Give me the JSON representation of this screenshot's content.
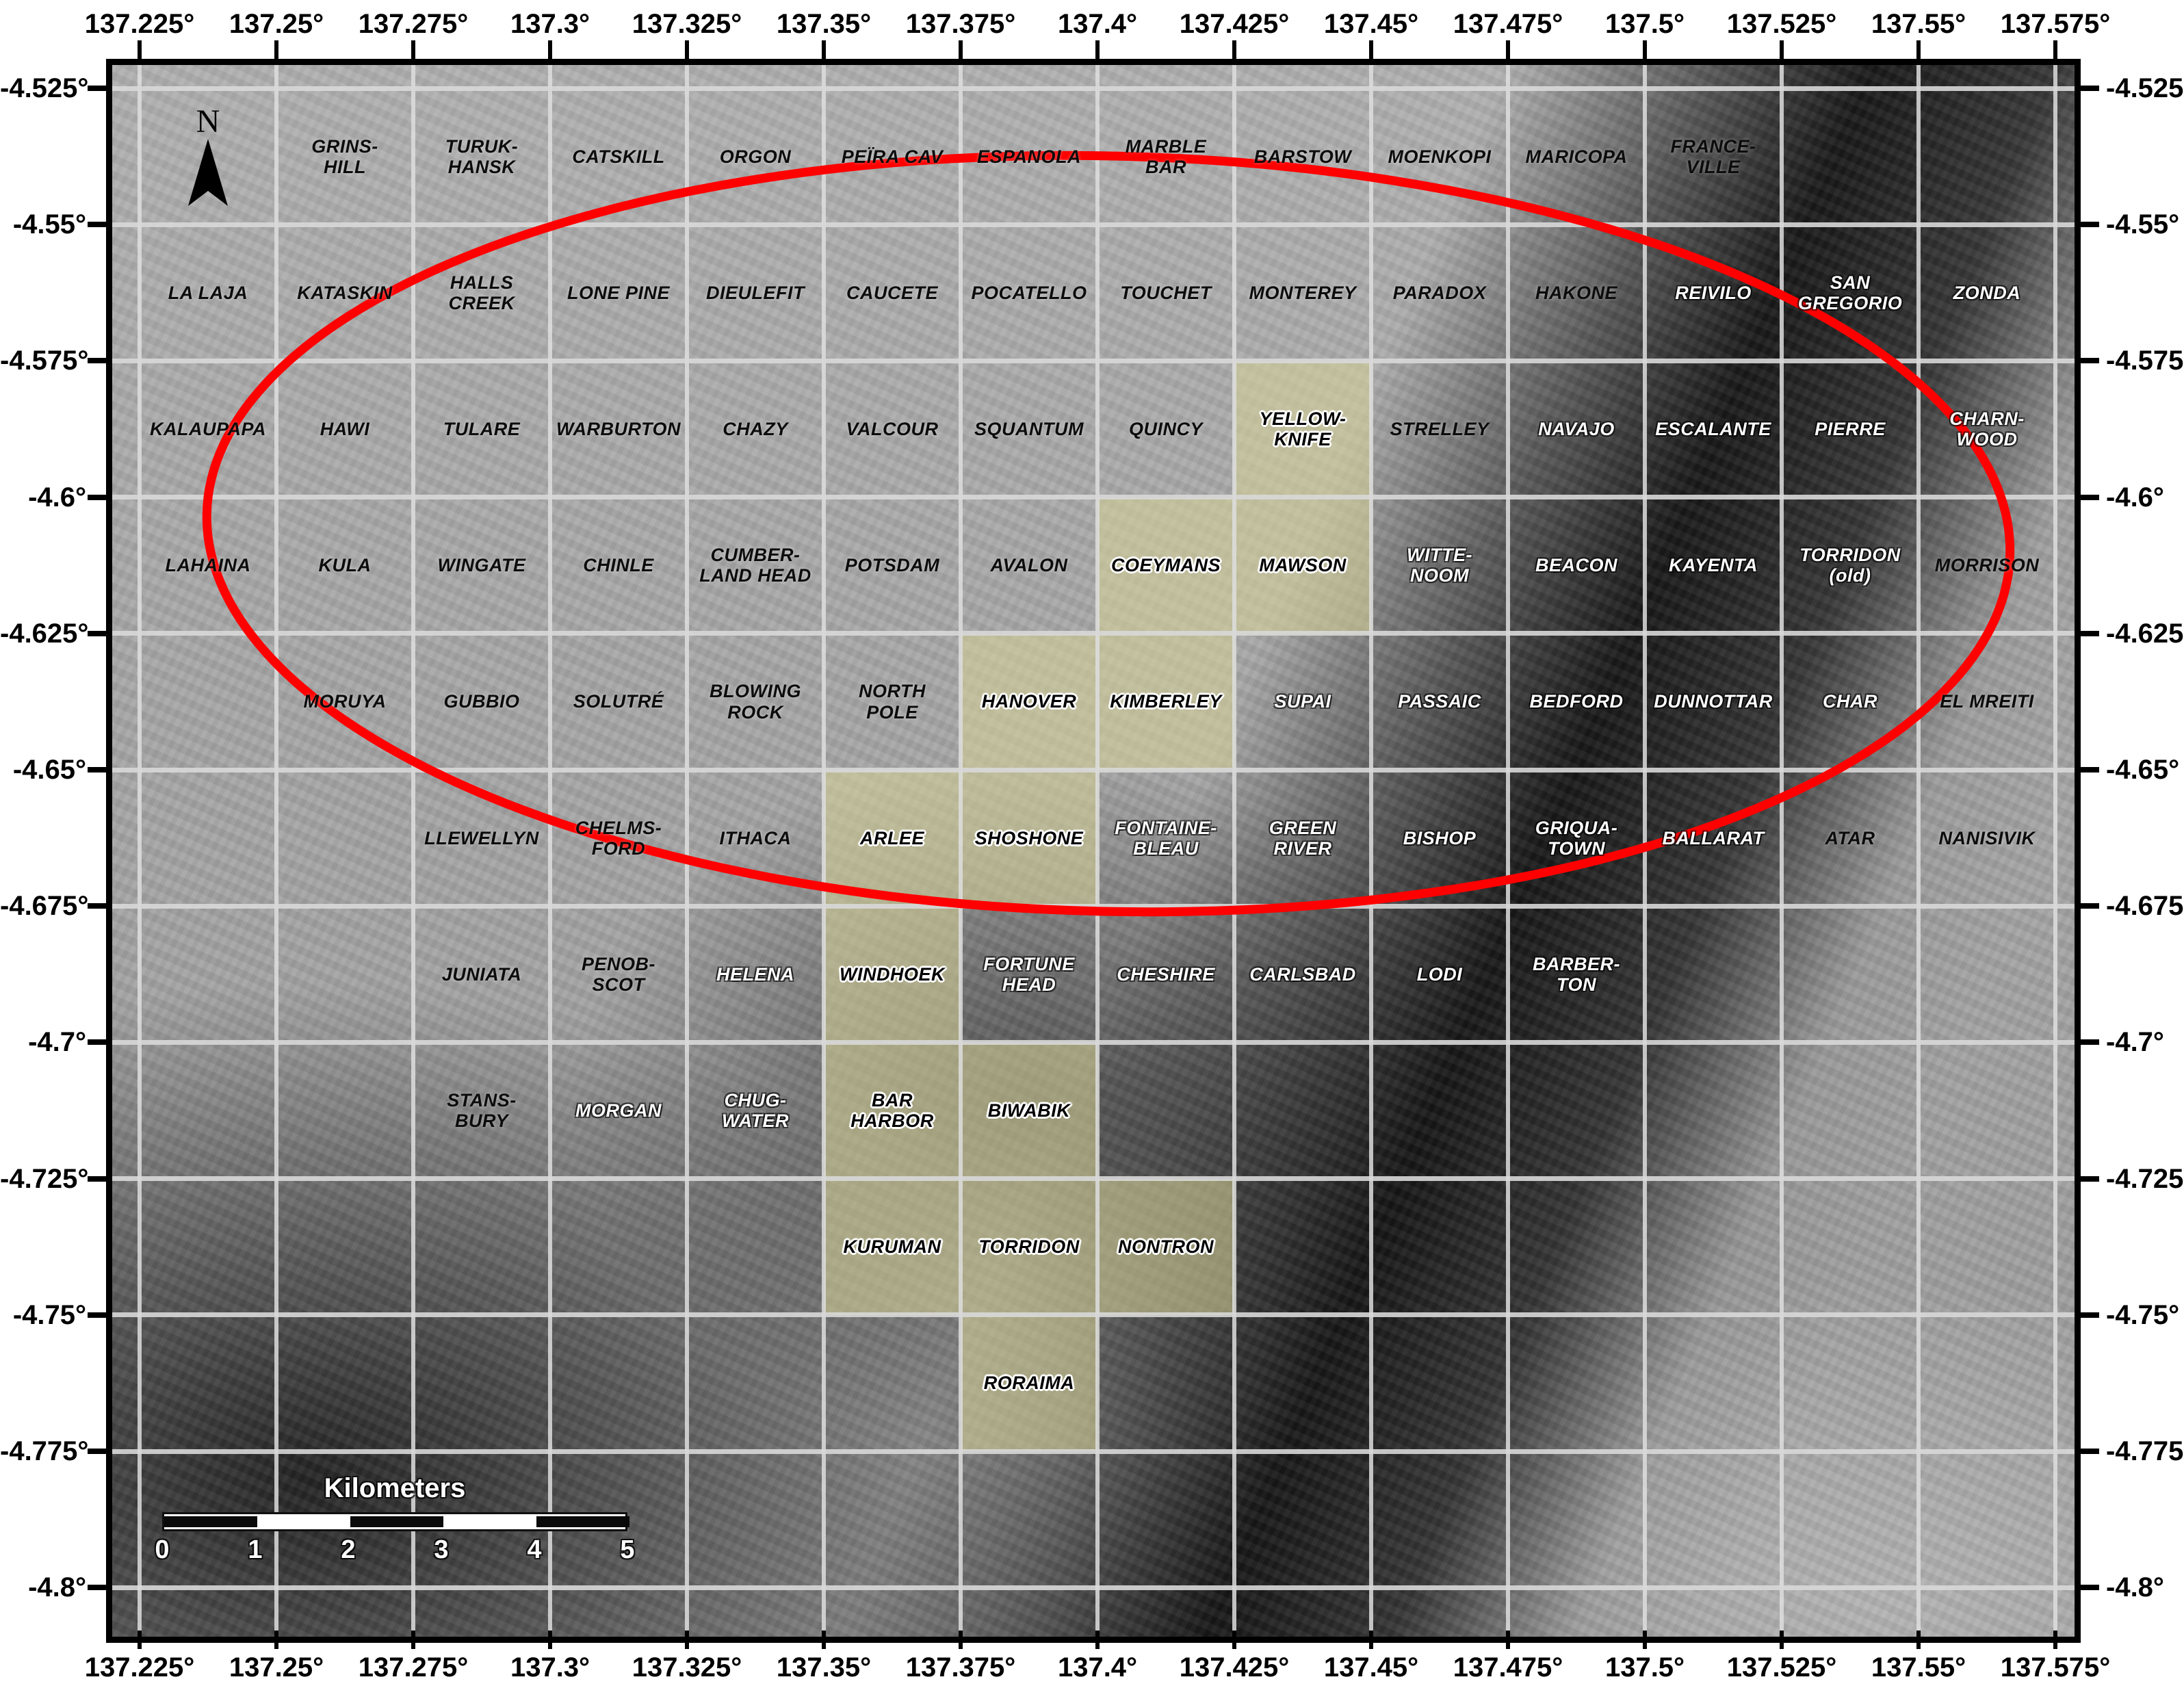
{
  "map": {
    "north_label": "N",
    "landing_ellipse_color": "#FF0000",
    "highlight_color": "#D4D196",
    "scale_bar": {
      "title": "Kilometers",
      "tick_values": [
        "0",
        "1",
        "2",
        "3",
        "4",
        "5"
      ]
    },
    "axes": {
      "lon_labels": [
        "137.225°",
        "137.25°",
        "137.275°",
        "137.3°",
        "137.325°",
        "137.35°",
        "137.375°",
        "137.4°",
        "137.425°",
        "137.45°",
        "137.475°",
        "137.5°",
        "137.525°",
        "137.55°",
        "137.575°"
      ],
      "lat_labels": [
        "-4.525°",
        "-4.55°",
        "-4.575°",
        "-4.6°",
        "-4.625°",
        "-4.65°",
        "-4.675°",
        "-4.7°",
        "-4.725°",
        "-4.75°",
        "-4.775°",
        "-4.8°"
      ]
    },
    "highlight_cells": [
      [
        3,
        9
      ],
      [
        4,
        8
      ],
      [
        4,
        9
      ],
      [
        5,
        7
      ],
      [
        5,
        8
      ],
      [
        6,
        6
      ],
      [
        6,
        7
      ],
      [
        7,
        6
      ],
      [
        8,
        6
      ],
      [
        8,
        7
      ],
      [
        9,
        6
      ],
      [
        9,
        7
      ],
      [
        9,
        8
      ],
      [
        10,
        7
      ]
    ],
    "quads": [
      {
        "name": "GRINS-\nHILL",
        "row": 1,
        "col": 2,
        "style": "dark"
      },
      {
        "name": "TURUK-\nHANSK",
        "row": 1,
        "col": 3,
        "style": "dark"
      },
      {
        "name": "CATSKILL",
        "row": 1,
        "col": 4,
        "style": "dark"
      },
      {
        "name": "ORGON",
        "row": 1,
        "col": 5,
        "style": "dark"
      },
      {
        "name": "PEÏRA CAV",
        "row": 1,
        "col": 6,
        "style": "dark"
      },
      {
        "name": "ESPANOLA",
        "row": 1,
        "col": 7,
        "style": "dark"
      },
      {
        "name": "MARBLE\nBAR",
        "row": 1,
        "col": 8,
        "style": "dark"
      },
      {
        "name": "BARSTOW",
        "row": 1,
        "col": 9,
        "style": "dark"
      },
      {
        "name": "MOENKOPI",
        "row": 1,
        "col": 10,
        "style": "dark"
      },
      {
        "name": "MARICOPA",
        "row": 1,
        "col": 11,
        "style": "dark"
      },
      {
        "name": "FRANCE-\nVILLE",
        "row": 1,
        "col": 12,
        "style": "dark"
      },
      {
        "name": "LA LAJA",
        "row": 2,
        "col": 1,
        "style": "dark"
      },
      {
        "name": "KATASKIN",
        "row": 2,
        "col": 2,
        "style": "dark"
      },
      {
        "name": "HALLS\nCREEK",
        "row": 2,
        "col": 3,
        "style": "dark"
      },
      {
        "name": "LONE PINE",
        "row": 2,
        "col": 4,
        "style": "dark"
      },
      {
        "name": "DIEULEFIT",
        "row": 2,
        "col": 5,
        "style": "dark"
      },
      {
        "name": "CAUCETE",
        "row": 2,
        "col": 6,
        "style": "dark"
      },
      {
        "name": "POCATELLO",
        "row": 2,
        "col": 7,
        "style": "dark"
      },
      {
        "name": "TOUCHET",
        "row": 2,
        "col": 8,
        "style": "dark"
      },
      {
        "name": "MONTEREY",
        "row": 2,
        "col": 9,
        "style": "dark"
      },
      {
        "name": "PARADOX",
        "row": 2,
        "col": 10,
        "style": "dark"
      },
      {
        "name": "HAKONE",
        "row": 2,
        "col": 11,
        "style": "dark"
      },
      {
        "name": "REIVILO",
        "row": 2,
        "col": 12,
        "style": "light"
      },
      {
        "name": "SAN\nGREGORIO",
        "row": 2,
        "col": 13,
        "style": "light"
      },
      {
        "name": "ZONDA",
        "row": 2,
        "col": 14,
        "style": "light"
      },
      {
        "name": "KALAUPAPA",
        "row": 3,
        "col": 1,
        "style": "dark"
      },
      {
        "name": "HAWI",
        "row": 3,
        "col": 2,
        "style": "dark"
      },
      {
        "name": "TULARE",
        "row": 3,
        "col": 3,
        "style": "dark"
      },
      {
        "name": "WARBURTON",
        "row": 3,
        "col": 4,
        "style": "dark"
      },
      {
        "name": "CHAZY",
        "row": 3,
        "col": 5,
        "style": "dark"
      },
      {
        "name": "VALCOUR",
        "row": 3,
        "col": 6,
        "style": "dark"
      },
      {
        "name": "SQUANTUM",
        "row": 3,
        "col": 7,
        "style": "dark"
      },
      {
        "name": "QUINCY",
        "row": 3,
        "col": 8,
        "style": "dark"
      },
      {
        "name": "YELLOW-\nKNIFE",
        "row": 3,
        "col": 9,
        "style": "hl"
      },
      {
        "name": "STRELLEY",
        "row": 3,
        "col": 10,
        "style": "dark"
      },
      {
        "name": "NAVAJO",
        "row": 3,
        "col": 11,
        "style": "light"
      },
      {
        "name": "ESCALANTE",
        "row": 3,
        "col": 12,
        "style": "light"
      },
      {
        "name": "PIERRE",
        "row": 3,
        "col": 13,
        "style": "light"
      },
      {
        "name": "CHARN-\nWOOD",
        "row": 3,
        "col": 14,
        "style": "light"
      },
      {
        "name": "LAHAINA",
        "row": 4,
        "col": 1,
        "style": "dark"
      },
      {
        "name": "KULA",
        "row": 4,
        "col": 2,
        "style": "dark"
      },
      {
        "name": "WINGATE",
        "row": 4,
        "col": 3,
        "style": "dark"
      },
      {
        "name": "CHINLE",
        "row": 4,
        "col": 4,
        "style": "dark"
      },
      {
        "name": "CUMBER-\nLAND HEAD",
        "row": 4,
        "col": 5,
        "style": "dark"
      },
      {
        "name": "POTSDAM",
        "row": 4,
        "col": 6,
        "style": "dark"
      },
      {
        "name": "AVALON",
        "row": 4,
        "col": 7,
        "style": "dark"
      },
      {
        "name": "COEYMANS",
        "row": 4,
        "col": 8,
        "style": "hl"
      },
      {
        "name": "MAWSON",
        "row": 4,
        "col": 9,
        "style": "hl"
      },
      {
        "name": "WITTE-\nNOOM",
        "row": 4,
        "col": 10,
        "style": "light"
      },
      {
        "name": "BEACON",
        "row": 4,
        "col": 11,
        "style": "light"
      },
      {
        "name": "KAYENTA",
        "row": 4,
        "col": 12,
        "style": "light"
      },
      {
        "name": "TORRIDON\n(old)",
        "row": 4,
        "col": 13,
        "style": "light"
      },
      {
        "name": "MORRISON",
        "row": 4,
        "col": 14,
        "style": "dark"
      },
      {
        "name": "MORUYA",
        "row": 5,
        "col": 2,
        "style": "dark"
      },
      {
        "name": "GUBBIO",
        "row": 5,
        "col": 3,
        "style": "dark"
      },
      {
        "name": "SOLUTRÉ",
        "row": 5,
        "col": 4,
        "style": "dark"
      },
      {
        "name": "BLOWING\nROCK",
        "row": 5,
        "col": 5,
        "style": "dark"
      },
      {
        "name": "NORTH\nPOLE",
        "row": 5,
        "col": 6,
        "style": "dark"
      },
      {
        "name": "HANOVER",
        "row": 5,
        "col": 7,
        "style": "hl"
      },
      {
        "name": "KIMBERLEY",
        "row": 5,
        "col": 8,
        "style": "hl"
      },
      {
        "name": "SUPAI",
        "row": 5,
        "col": 9,
        "style": "light"
      },
      {
        "name": "PASSAIC",
        "row": 5,
        "col": 10,
        "style": "light"
      },
      {
        "name": "BEDFORD",
        "row": 5,
        "col": 11,
        "style": "light"
      },
      {
        "name": "DUNNOTTAR",
        "row": 5,
        "col": 12,
        "style": "light"
      },
      {
        "name": "CHAR",
        "row": 5,
        "col": 13,
        "style": "light"
      },
      {
        "name": "EL MREITI",
        "row": 5,
        "col": 14,
        "style": "dark"
      },
      {
        "name": "LLEWELLYN",
        "row": 6,
        "col": 3,
        "style": "dark"
      },
      {
        "name": "CHELMS-\nFORD",
        "row": 6,
        "col": 4,
        "style": "dark"
      },
      {
        "name": "ITHACA",
        "row": 6,
        "col": 5,
        "style": "dark"
      },
      {
        "name": "ARLEE",
        "row": 6,
        "col": 6,
        "style": "hl"
      },
      {
        "name": "SHOSHONE",
        "row": 6,
        "col": 7,
        "style": "hl"
      },
      {
        "name": "FONTAINE-\nBLEAU",
        "row": 6,
        "col": 8,
        "style": "light"
      },
      {
        "name": "GREEN\nRIVER",
        "row": 6,
        "col": 9,
        "style": "light"
      },
      {
        "name": "BISHOP",
        "row": 6,
        "col": 10,
        "style": "light"
      },
      {
        "name": "GRIQUA-\nTOWN",
        "row": 6,
        "col": 11,
        "style": "light"
      },
      {
        "name": "BALLARAT",
        "row": 6,
        "col": 12,
        "style": "light"
      },
      {
        "name": "ATAR",
        "row": 6,
        "col": 13,
        "style": "dark"
      },
      {
        "name": "NANISIVIK",
        "row": 6,
        "col": 14,
        "style": "dark"
      },
      {
        "name": "JUNIATA",
        "row": 7,
        "col": 3,
        "style": "dark"
      },
      {
        "name": "PENOB-\nSCOT",
        "row": 7,
        "col": 4,
        "style": "dark"
      },
      {
        "name": "HELENA",
        "row": 7,
        "col": 5,
        "style": "light"
      },
      {
        "name": "WINDHOEK",
        "row": 7,
        "col": 6,
        "style": "hl"
      },
      {
        "name": "FORTUNE\nHEAD",
        "row": 7,
        "col": 7,
        "style": "light"
      },
      {
        "name": "CHESHIRE",
        "row": 7,
        "col": 8,
        "style": "light"
      },
      {
        "name": "CARLSBAD",
        "row": 7,
        "col": 9,
        "style": "light"
      },
      {
        "name": "LODI",
        "row": 7,
        "col": 10,
        "style": "light"
      },
      {
        "name": "BARBER-\nTON",
        "row": 7,
        "col": 11,
        "style": "light"
      },
      {
        "name": "STANS-\nBURY",
        "row": 8,
        "col": 3,
        "style": "dark"
      },
      {
        "name": "MORGAN",
        "row": 8,
        "col": 4,
        "style": "light"
      },
      {
        "name": "CHUG-\nWATER",
        "row": 8,
        "col": 5,
        "style": "light"
      },
      {
        "name": "BAR\nHARBOR",
        "row": 8,
        "col": 6,
        "style": "hl"
      },
      {
        "name": "BIWABIK",
        "row": 8,
        "col": 7,
        "style": "hl"
      },
      {
        "name": "KURUMAN",
        "row": 9,
        "col": 6,
        "style": "hl"
      },
      {
        "name": "TORRIDON",
        "row": 9,
        "col": 7,
        "style": "hl"
      },
      {
        "name": "NONTRON",
        "row": 9,
        "col": 8,
        "style": "hl"
      },
      {
        "name": "RORAIMA",
        "row": 10,
        "col": 7,
        "style": "hl"
      }
    ]
  }
}
